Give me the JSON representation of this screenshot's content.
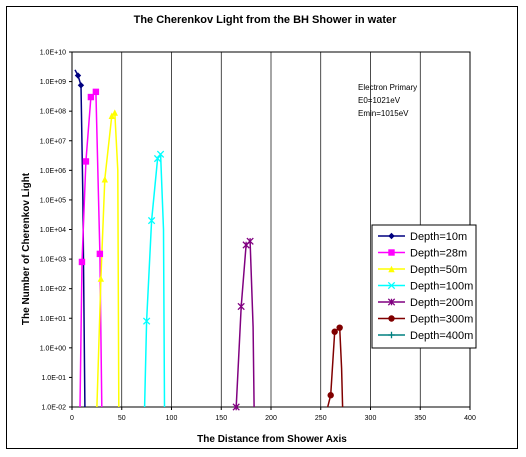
{
  "chart_data": {
    "type": "line",
    "title": "The Cherenkov Light from the BH Shower in water",
    "xlabel": "The Distance from Shower Axis",
    "ylabel": "The Number of Cherenkov Light",
    "xlim": [
      0,
      400
    ],
    "ylim": [
      0.01,
      10000000000
    ],
    "yscale": "log",
    "grid": "vertical",
    "legend_placement": "right",
    "x_ticks": [
      "0",
      "50",
      "100",
      "150",
      "200",
      "250",
      "300",
      "350",
      "400"
    ],
    "y_ticks": [
      "1.0E-02",
      "1.0E-01",
      "1.0E+00",
      "1.0E+01",
      "1.0E+02",
      "1.0E+03",
      "1.0E+04",
      "1.0E+05",
      "1.0E+06",
      "1.0E+07",
      "1.0E+08",
      "1.0E+09",
      "1.0E+10"
    ],
    "annotations": [
      "Electron Primary",
      "E0=1021eV",
      "Emin=1015eV"
    ],
    "series": [
      {
        "name": "Depth=10m",
        "color": "#000080",
        "marker": "diamond",
        "line": [
          [
            3,
            2500000000.0
          ],
          [
            6,
            1600000000.0
          ],
          [
            9,
            750000000.0
          ],
          [
            11,
            100000.0
          ],
          [
            13,
            0.01
          ]
        ],
        "points": [
          [
            6,
            1600000000.0
          ],
          [
            9,
            750000000.0
          ]
        ]
      },
      {
        "name": "Depth=28m",
        "color": "#ff00ff",
        "marker": "square",
        "line": [
          [
            8,
            0.01
          ],
          [
            10,
            800
          ],
          [
            14,
            2000000.0
          ],
          [
            19,
            300000000.0
          ],
          [
            24,
            450000000.0
          ],
          [
            28,
            1500.0
          ],
          [
            30,
            0.01
          ]
        ],
        "points": [
          [
            10,
            800
          ],
          [
            14,
            2000000.0
          ],
          [
            19,
            300000000.0
          ],
          [
            24,
            450000000.0
          ],
          [
            28,
            1500.0
          ]
        ]
      },
      {
        "name": "Depth=50m",
        "color": "#ffff00",
        "marker": "triangle",
        "line": [
          [
            25,
            0.01
          ],
          [
            29,
            220
          ],
          [
            33,
            500000.0
          ],
          [
            40,
            70000000.0
          ],
          [
            43,
            90000000.0
          ],
          [
            46,
            1000000.0
          ],
          [
            47,
            0.01
          ]
        ],
        "points": [
          [
            29,
            220
          ],
          [
            33,
            500000.0
          ],
          [
            40,
            70000000.0
          ],
          [
            43,
            90000000.0
          ]
        ]
      },
      {
        "name": "Depth=100m",
        "color": "#00ffff",
        "marker": "x",
        "line": [
          [
            73,
            0.01
          ],
          [
            75,
            8
          ],
          [
            80,
            20000.0
          ],
          [
            86,
            2500000.0
          ],
          [
            89,
            3500000.0
          ],
          [
            92,
            10000.0
          ],
          [
            93,
            0.01
          ]
        ],
        "points": [
          [
            75,
            8
          ],
          [
            80,
            20000.0
          ],
          [
            86,
            2500000.0
          ],
          [
            89,
            3500000.0
          ]
        ]
      },
      {
        "name": "Depth=200m",
        "color": "#800080",
        "marker": "star",
        "line": [
          [
            163,
            0.01
          ],
          [
            165,
            0.01
          ],
          [
            170,
            25
          ],
          [
            175,
            3000.0
          ],
          [
            179,
            4000.0
          ],
          [
            182,
            5
          ],
          [
            183,
            0.01
          ]
        ],
        "points": [
          [
            165,
            0.01
          ],
          [
            170,
            25
          ],
          [
            175,
            3000.0
          ],
          [
            179,
            4000.0
          ]
        ]
      },
      {
        "name": "Depth=300m",
        "color": "#800000",
        "marker": "circle",
        "line": [
          [
            257,
            0.01
          ],
          [
            260,
            0.025
          ],
          [
            264,
            3.5
          ],
          [
            269,
            4.8
          ],
          [
            271,
            0.2
          ],
          [
            272,
            0.01
          ]
        ],
        "points": [
          [
            260,
            0.025
          ],
          [
            264,
            3.5
          ],
          [
            269,
            4.8
          ]
        ]
      },
      {
        "name": "Depth=400m",
        "color": "#008080",
        "marker": "plus",
        "line": [],
        "points": []
      }
    ]
  }
}
